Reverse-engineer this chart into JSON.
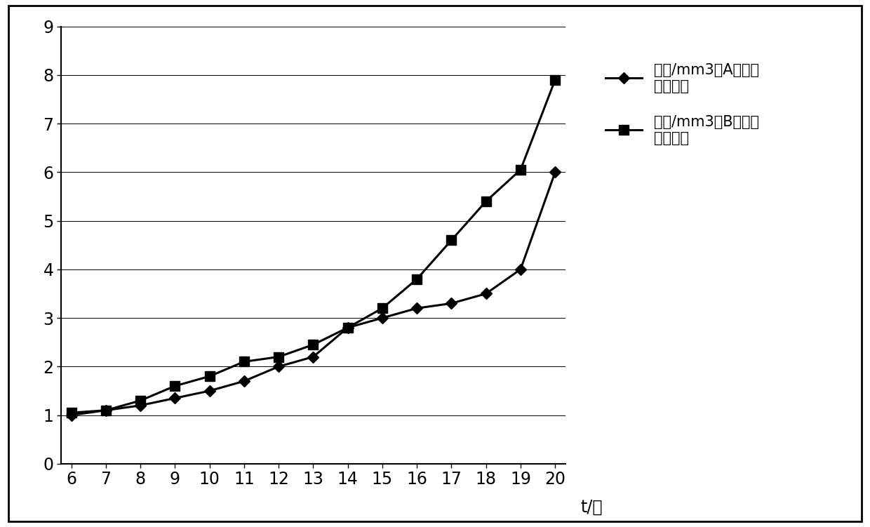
{
  "x": [
    6,
    7,
    8,
    9,
    10,
    11,
    12,
    13,
    14,
    15,
    16,
    17,
    18,
    19,
    20
  ],
  "series_A": [
    1.0,
    1.1,
    1.2,
    1.35,
    1.5,
    1.7,
    2.0,
    2.2,
    2.8,
    3.0,
    3.2,
    3.3,
    3.5,
    4.0,
    6.0
  ],
  "series_B": [
    1.05,
    1.1,
    1.3,
    1.6,
    1.8,
    2.1,
    2.2,
    2.45,
    2.8,
    3.2,
    3.8,
    4.6,
    5.4,
    6.05,
    7.9
  ],
  "series_A_label": "个数/mm3（A组）单\n位：十万",
  "series_B_label": "个数/mm3（B组）单\n位：十万",
  "xlabel": "t/天",
  "ylim": [
    0,
    9
  ],
  "xlim": [
    6,
    20
  ],
  "yticks": [
    0,
    1,
    2,
    3,
    4,
    5,
    6,
    7,
    8,
    9
  ],
  "xticks": [
    6,
    7,
    8,
    9,
    10,
    11,
    12,
    13,
    14,
    15,
    16,
    17,
    18,
    19,
    20
  ],
  "line_color": "#000000",
  "background_color": "#ffffff",
  "marker_A": "D",
  "marker_B": "s",
  "linewidth": 2.2,
  "markersize_A": 8,
  "markersize_B": 10,
  "legend_fontsize": 15,
  "tick_fontsize": 17,
  "xlabel_fontsize": 17
}
